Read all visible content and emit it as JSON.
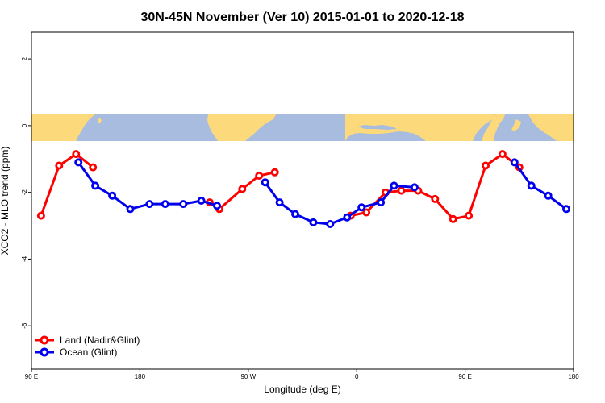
{
  "chart_data": {
    "type": "line",
    "title": "30N-45N November (Ver 10)   2015-01-01 to 2020-12-18",
    "xlabel": "Longitude (deg E)",
    "ylabel": "XCO2 - MLO trend (ppm)",
    "x_ticks": [
      {
        "value": 90,
        "label": "90 E"
      },
      {
        "value": 180,
        "label": "180"
      },
      {
        "value": 270,
        "label": "90 W"
      },
      {
        "value": 360,
        "label": "0"
      },
      {
        "value": 450,
        "label": "90 E"
      },
      {
        "value": 540,
        "label": "180"
      }
    ],
    "y_ticks": [
      {
        "value": 2,
        "label": "2"
      },
      {
        "value": 0,
        "label": "0"
      },
      {
        "value": -2,
        "label": "-2"
      },
      {
        "value": -4,
        "label": "-4"
      },
      {
        "value": -6,
        "label": "-6"
      }
    ],
    "xlim": [
      90,
      540
    ],
    "ylim": [
      -7.3,
      2.8
    ],
    "map_band": {
      "ymin": -0.5,
      "ymax": 0.3,
      "ocean_color": "#a7bcdf",
      "land_color": "#fcd97b"
    },
    "legend_position": "bottom-left",
    "series": [
      {
        "name": "Land (Nadir&Glint)",
        "color": "#ff0000",
        "segments": [
          [
            [
              98,
              -2.7
            ],
            [
              113,
              -1.2
            ],
            [
              127,
              -0.85
            ],
            [
              141,
              -1.25
            ]
          ],
          [
            [
              238,
              -2.3
            ],
            [
              246,
              -2.5
            ],
            [
              265,
              -1.9
            ],
            [
              279,
              -1.5
            ],
            [
              292,
              -1.4
            ]
          ],
          [
            [
              355,
              -2.7
            ],
            [
              368,
              -2.6
            ],
            [
              384,
              -2.0
            ],
            [
              397,
              -1.95
            ],
            [
              411,
              -1.95
            ],
            [
              425,
              -2.2
            ],
            [
              440,
              -2.8
            ],
            [
              453,
              -2.7
            ],
            [
              467,
              -1.2
            ],
            [
              481,
              -0.85
            ],
            [
              495,
              -1.25
            ]
          ]
        ]
      },
      {
        "name": "Ocean (Glint)",
        "color": "#0000ee",
        "segments": [
          [
            [
              129,
              -1.1
            ],
            [
              143,
              -1.8
            ],
            [
              157,
              -2.1
            ],
            [
              172,
              -2.5
            ],
            [
              188,
              -2.35
            ],
            [
              201,
              -2.35
            ],
            [
              216,
              -2.35
            ],
            [
              231,
              -2.25
            ],
            [
              244,
              -2.4
            ]
          ],
          [
            [
              284,
              -1.7
            ],
            [
              296,
              -2.3
            ],
            [
              309,
              -2.65
            ],
            [
              324,
              -2.9
            ],
            [
              338,
              -2.95
            ],
            [
              352,
              -2.75
            ],
            [
              364,
              -2.45
            ],
            [
              380,
              -2.3
            ],
            [
              391,
              -1.8
            ],
            [
              408,
              -1.85
            ]
          ],
          [
            [
              491,
              -1.1
            ],
            [
              505,
              -1.8
            ],
            [
              519,
              -2.1
            ],
            [
              534,
              -2.5
            ]
          ]
        ]
      }
    ]
  }
}
